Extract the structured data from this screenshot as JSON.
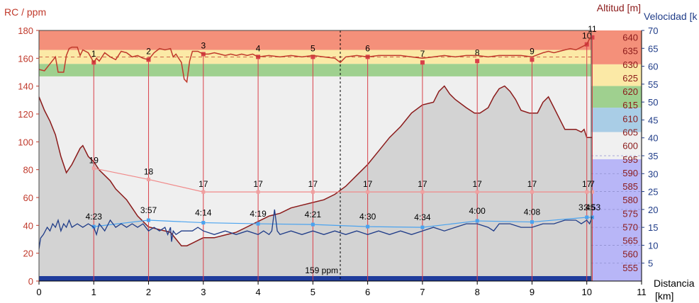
{
  "chart_data": {
    "type": "line",
    "x_axis": {
      "label": "Distancia",
      "unit": "[km]",
      "range": [
        0,
        11
      ],
      "ticks": [
        0,
        1,
        2,
        3,
        4,
        5,
        6,
        7,
        8,
        9,
        10,
        11
      ]
    },
    "hr_axis": {
      "label": "RC / ppm",
      "range": [
        0,
        180
      ],
      "ticks": [
        0,
        20,
        40,
        60,
        80,
        100,
        120,
        140,
        160,
        180
      ],
      "color": "#c0392b"
    },
    "alt_axis": {
      "label": "Altitud [m]",
      "range": [
        550,
        642.5
      ],
      "ticks": [
        555,
        560,
        565,
        570,
        575,
        580,
        585,
        590,
        595,
        600,
        605,
        610,
        615,
        620,
        625,
        630,
        635,
        640
      ],
      "color": "#8b1a1a"
    },
    "speed_axis": {
      "label": "Velocidad [k",
      "range": [
        0,
        70
      ],
      "ticks": [
        5,
        10,
        15,
        20,
        25,
        30,
        35,
        40,
        45,
        50,
        55,
        60,
        65,
        70
      ],
      "color": "#1f3c88"
    },
    "hr_zones": [
      {
        "from": 0,
        "to": 147,
        "color": "#efefef"
      },
      {
        "from": 147,
        "to": 156,
        "color": "#9fd08f"
      },
      {
        "from": 156,
        "to": 166,
        "color": "#fbe9a6"
      },
      {
        "from": 166,
        "to": 180,
        "color": "#f4907a"
      }
    ],
    "right_zones": [
      {
        "from": 550,
        "to": 595,
        "color": "#b8b6f7"
      },
      {
        "from": 595,
        "to": 605,
        "color": "#f0f0f0"
      },
      {
        "from": 605,
        "to": 614,
        "color": "#a9cde6"
      },
      {
        "from": 614,
        "to": 622,
        "color": "#9fd08f"
      },
      {
        "from": 622,
        "to": 630,
        "color": "#fbe9a6"
      },
      {
        "from": 630,
        "to": 642.5,
        "color": "#f4907a"
      }
    ],
    "altitude_series": {
      "name": "Altitud",
      "color": "#8b1a1a",
      "fill": "#d3d3d3",
      "points": [
        [
          0,
          618
        ],
        [
          0.1,
          613
        ],
        [
          0.2,
          609
        ],
        [
          0.3,
          604
        ],
        [
          0.4,
          596
        ],
        [
          0.5,
          590
        ],
        [
          0.6,
          593
        ],
        [
          0.75,
          599
        ],
        [
          0.8,
          600
        ],
        [
          0.9,
          596
        ],
        [
          1.0,
          594
        ],
        [
          1.1,
          591
        ],
        [
          1.2,
          589
        ],
        [
          1.3,
          587
        ],
        [
          1.4,
          584
        ],
        [
          1.5,
          582
        ],
        [
          1.6,
          580
        ],
        [
          1.7,
          577
        ],
        [
          1.8,
          574
        ],
        [
          1.9,
          572
        ],
        [
          2.0,
          570
        ],
        [
          2.2,
          569
        ],
        [
          2.4,
          568
        ],
        [
          2.6,
          563
        ],
        [
          2.7,
          563
        ],
        [
          2.8,
          564
        ],
        [
          2.9,
          565
        ],
        [
          3.0,
          566
        ],
        [
          3.2,
          566
        ],
        [
          3.4,
          567
        ],
        [
          3.6,
          568
        ],
        [
          3.8,
          570
        ],
        [
          4.0,
          572
        ],
        [
          4.2,
          574
        ],
        [
          4.4,
          575
        ],
        [
          4.6,
          577
        ],
        [
          4.8,
          578
        ],
        [
          5.0,
          579
        ],
        [
          5.2,
          580
        ],
        [
          5.4,
          582
        ],
        [
          5.6,
          585
        ],
        [
          5.8,
          589
        ],
        [
          6.0,
          593
        ],
        [
          6.2,
          598
        ],
        [
          6.4,
          603
        ],
        [
          6.6,
          607
        ],
        [
          6.8,
          612
        ],
        [
          7.0,
          615
        ],
        [
          7.2,
          616
        ],
        [
          7.3,
          620
        ],
        [
          7.4,
          622
        ],
        [
          7.5,
          619
        ],
        [
          7.6,
          617
        ],
        [
          7.8,
          614
        ],
        [
          7.95,
          612
        ],
        [
          8.05,
          612
        ],
        [
          8.2,
          614
        ],
        [
          8.3,
          618
        ],
        [
          8.4,
          621
        ],
        [
          8.5,
          622
        ],
        [
          8.6,
          620
        ],
        [
          8.7,
          617
        ],
        [
          8.8,
          613
        ],
        [
          8.95,
          612
        ],
        [
          9.1,
          612
        ],
        [
          9.2,
          616
        ],
        [
          9.3,
          618
        ],
        [
          9.4,
          614
        ],
        [
          9.5,
          610
        ],
        [
          9.6,
          606
        ],
        [
          9.75,
          606
        ],
        [
          9.8,
          606
        ],
        [
          9.9,
          605
        ],
        [
          9.95,
          606
        ],
        [
          10.0,
          603
        ],
        [
          10.1,
          603
        ]
      ]
    },
    "hr_series": {
      "name": "RC",
      "color": "#c0392b",
      "points": [
        [
          0,
          152
        ],
        [
          0.1,
          151
        ],
        [
          0.2,
          156
        ],
        [
          0.3,
          161
        ],
        [
          0.35,
          150
        ],
        [
          0.45,
          150
        ],
        [
          0.5,
          162
        ],
        [
          0.55,
          167
        ],
        [
          0.6,
          168
        ],
        [
          0.7,
          168
        ],
        [
          0.75,
          162
        ],
        [
          0.8,
          166
        ],
        [
          0.9,
          164
        ],
        [
          1.0,
          157
        ],
        [
          1.05,
          160
        ],
        [
          1.1,
          158
        ],
        [
          1.2,
          164
        ],
        [
          1.3,
          161
        ],
        [
          1.4,
          159
        ],
        [
          1.5,
          165
        ],
        [
          1.6,
          164
        ],
        [
          1.7,
          161
        ],
        [
          1.8,
          162
        ],
        [
          1.9,
          160
        ],
        [
          2.0,
          159
        ],
        [
          2.1,
          164
        ],
        [
          2.2,
          167
        ],
        [
          2.3,
          166
        ],
        [
          2.4,
          167
        ],
        [
          2.45,
          161
        ],
        [
          2.5,
          163
        ],
        [
          2.6,
          157
        ],
        [
          2.65,
          145
        ],
        [
          2.7,
          143
        ],
        [
          2.75,
          158
        ],
        [
          2.8,
          165
        ],
        [
          2.9,
          165
        ],
        [
          3.0,
          163
        ],
        [
          3.1,
          163
        ],
        [
          3.2,
          164
        ],
        [
          3.3,
          163
        ],
        [
          3.4,
          162
        ],
        [
          3.5,
          163
        ],
        [
          3.6,
          162
        ],
        [
          3.7,
          163
        ],
        [
          3.8,
          162
        ],
        [
          3.9,
          163
        ],
        [
          4.0,
          161
        ],
        [
          4.2,
          162
        ],
        [
          4.4,
          161
        ],
        [
          4.6,
          162
        ],
        [
          4.8,
          161
        ],
        [
          5.0,
          162
        ],
        [
          5.2,
          161
        ],
        [
          5.4,
          160
        ],
        [
          5.5,
          157
        ],
        [
          5.6,
          161
        ],
        [
          5.8,
          162
        ],
        [
          6.0,
          161
        ],
        [
          6.2,
          162
        ],
        [
          6.4,
          162
        ],
        [
          6.6,
          162
        ],
        [
          6.8,
          161
        ],
        [
          7.0,
          160
        ],
        [
          7.2,
          161
        ],
        [
          7.4,
          162
        ],
        [
          7.6,
          161
        ],
        [
          7.8,
          162
        ],
        [
          8.0,
          162
        ],
        [
          8.2,
          161
        ],
        [
          8.4,
          162
        ],
        [
          8.6,
          162
        ],
        [
          8.8,
          162
        ],
        [
          9.0,
          161
        ],
        [
          9.2,
          164
        ],
        [
          9.3,
          165
        ],
        [
          9.4,
          164
        ],
        [
          9.5,
          165
        ],
        [
          9.6,
          166
        ],
        [
          9.7,
          167
        ],
        [
          9.8,
          166
        ],
        [
          9.9,
          168
        ],
        [
          10.0,
          170
        ],
        [
          10.05,
          174
        ],
        [
          10.1,
          175
        ]
      ]
    },
    "speed_series": {
      "name": "Velocidad",
      "color": "#1f3c88",
      "points": [
        [
          0,
          9
        ],
        [
          0.03,
          12
        ],
        [
          0.08,
          13
        ],
        [
          0.15,
          15
        ],
        [
          0.2,
          14
        ],
        [
          0.25,
          16
        ],
        [
          0.3,
          15
        ],
        [
          0.35,
          17
        ],
        [
          0.4,
          14
        ],
        [
          0.45,
          16
        ],
        [
          0.5,
          15
        ],
        [
          0.55,
          17
        ],
        [
          0.6,
          15
        ],
        [
          0.7,
          16
        ],
        [
          0.8,
          15
        ],
        [
          0.9,
          16
        ],
        [
          1.0,
          15
        ],
        [
          1.05,
          13
        ],
        [
          1.1,
          16
        ],
        [
          1.2,
          14
        ],
        [
          1.3,
          17
        ],
        [
          1.4,
          15
        ],
        [
          1.5,
          16
        ],
        [
          1.6,
          15
        ],
        [
          1.7,
          16
        ],
        [
          1.8,
          15
        ],
        [
          1.9,
          16
        ],
        [
          2.0,
          14
        ],
        [
          2.1,
          15
        ],
        [
          2.2,
          14
        ],
        [
          2.3,
          15
        ],
        [
          2.35,
          13
        ],
        [
          2.4,
          15
        ],
        [
          2.42,
          11
        ],
        [
          2.45,
          14
        ],
        [
          2.5,
          13
        ],
        [
          2.6,
          14
        ],
        [
          2.7,
          14
        ],
        [
          2.8,
          14
        ],
        [
          2.9,
          15
        ],
        [
          3.0,
          14
        ],
        [
          3.2,
          13
        ],
        [
          3.4,
          14
        ],
        [
          3.6,
          13
        ],
        [
          3.8,
          14
        ],
        [
          4.0,
          13
        ],
        [
          4.1,
          14
        ],
        [
          4.2,
          13
        ],
        [
          4.25,
          14
        ],
        [
          4.3,
          20
        ],
        [
          4.35,
          14
        ],
        [
          4.4,
          13
        ],
        [
          4.6,
          14
        ],
        [
          4.8,
          13
        ],
        [
          5.0,
          14
        ],
        [
          5.2,
          13
        ],
        [
          5.4,
          14
        ],
        [
          5.6,
          13
        ],
        [
          5.8,
          14
        ],
        [
          6.0,
          13
        ],
        [
          6.2,
          14
        ],
        [
          6.4,
          13
        ],
        [
          6.6,
          14
        ],
        [
          6.8,
          13
        ],
        [
          7.0,
          14
        ],
        [
          7.2,
          15
        ],
        [
          7.4,
          14
        ],
        [
          7.6,
          15
        ],
        [
          7.8,
          16
        ],
        [
          8.0,
          16
        ],
        [
          8.2,
          15
        ],
        [
          8.3,
          14
        ],
        [
          8.4,
          16
        ],
        [
          8.6,
          16
        ],
        [
          8.8,
          15
        ],
        [
          9.0,
          15
        ],
        [
          9.2,
          16
        ],
        [
          9.4,
          16
        ],
        [
          9.6,
          17
        ],
        [
          9.8,
          17
        ],
        [
          9.9,
          16
        ],
        [
          10.0,
          17
        ],
        [
          10.05,
          16
        ],
        [
          10.1,
          18
        ]
      ]
    },
    "laps": [
      {
        "lap": "1",
        "x": 1.0,
        "hr_avg": "19",
        "pace": "4:23"
      },
      {
        "lap": "2",
        "x": 2.0,
        "hr_avg": "18",
        "pace": "3:57"
      },
      {
        "lap": "3",
        "x": 3.0,
        "hr_avg": "17",
        "pace": "4:14"
      },
      {
        "lap": "4",
        "x": 4.0,
        "hr_avg": "17",
        "pace": "4:19"
      },
      {
        "lap": "5",
        "x": 5.0,
        "hr_avg": "17",
        "pace": "4:21"
      },
      {
        "lap": "6",
        "x": 6.0,
        "hr_avg": "17",
        "pace": "4:30"
      },
      {
        "lap": "7",
        "x": 7.0,
        "hr_avg": "17",
        "pace": "4:34"
      },
      {
        "lap": "8",
        "x": 8.0,
        "hr_avg": "17",
        "pace": "4:00"
      },
      {
        "lap": "9",
        "x": 9.0,
        "hr_avg": "17",
        "pace": "4:08"
      },
      {
        "lap": "10",
        "x": 10.0,
        "hr_avg": "17",
        "pace": "3:46"
      },
      {
        "lap": "11",
        "x": 10.1,
        "hr_avg": "7",
        "pace": "3:53"
      }
    ],
    "lap_marker_hr": [
      157,
      159,
      163,
      161,
      161,
      161,
      157,
      158,
      159,
      170,
      175
    ],
    "lap_hr_line_values": [
      81,
      73,
      64,
      64,
      64,
      64,
      64,
      64,
      64,
      64,
      64
    ],
    "lap_speed_line_values": [
      15.2,
      17.0,
      16.3,
      16.0,
      15.8,
      15.2,
      15.0,
      16.8,
      16.5,
      17.8,
      17.8
    ],
    "avg_hr_line": 159,
    "cursor": {
      "x": 5.5,
      "label": "159 ppm"
    },
    "hr_dashed_level": 161
  }
}
